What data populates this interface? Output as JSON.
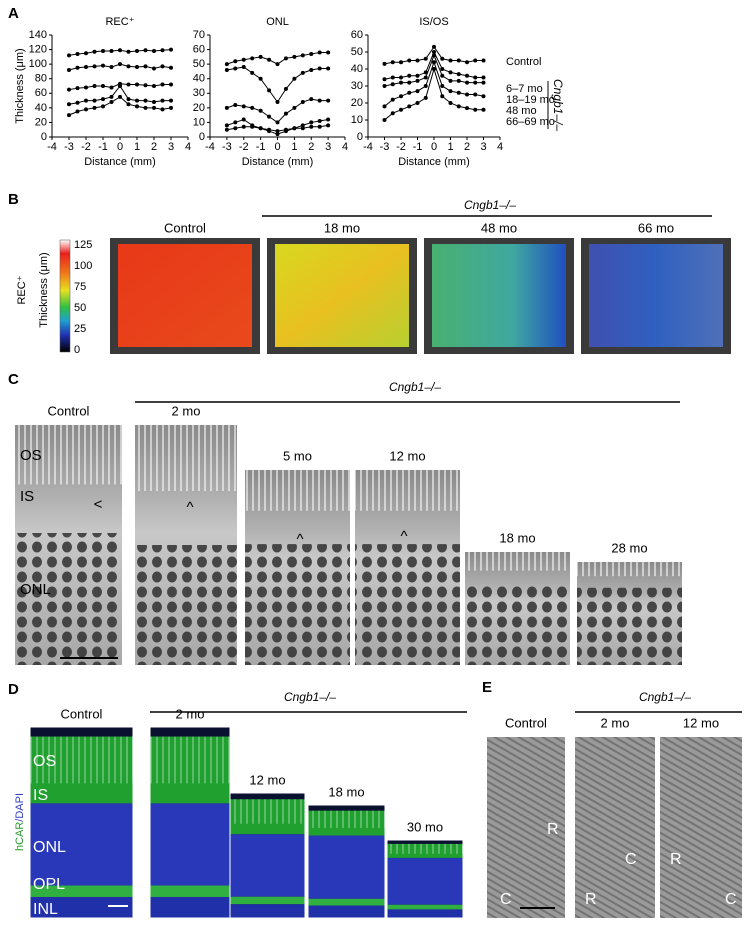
{
  "chart_data": [
    {
      "type": "line",
      "title": "REC⁺",
      "x_label": "Distance (mm)",
      "y_label": "Thickness (μm)",
      "x": [
        -3,
        -2.5,
        -2,
        -1.5,
        -1,
        -0.5,
        0,
        0.5,
        1,
        1.5,
        2,
        2.5,
        3
      ],
      "xlim": [
        -4,
        4
      ],
      "xticks": [
        -4,
        -3,
        -2,
        -1,
        0,
        1,
        2,
        3,
        4
      ],
      "ylim": [
        0,
        140
      ],
      "yticks": [
        0,
        20,
        40,
        60,
        80,
        100,
        120,
        140
      ],
      "series": [
        {
          "color": "#000000",
          "values": [
            112,
            114,
            115,
            117,
            118,
            118,
            119,
            117,
            118,
            119,
            118,
            119,
            120
          ]
        },
        {
          "color": "#000000",
          "values": [
            92,
            95,
            96,
            97,
            98,
            96,
            100,
            97,
            96,
            97,
            94,
            97,
            95
          ]
        },
        {
          "color": "#000000",
          "values": [
            65,
            67,
            68,
            70,
            70,
            68,
            73,
            72,
            72,
            71,
            70,
            72,
            72
          ]
        },
        {
          "color": "#000000",
          "values": [
            45,
            47,
            50,
            50,
            52,
            55,
            70,
            52,
            50,
            50,
            48,
            50,
            50
          ]
        },
        {
          "color": "#000000",
          "values": [
            30,
            35,
            38,
            40,
            42,
            48,
            55,
            45,
            42,
            40,
            40,
            38,
            40
          ]
        }
      ]
    },
    {
      "type": "line",
      "title": "ONL",
      "x_label": "Distance (mm)",
      "x": [
        -3,
        -2.5,
        -2,
        -1.5,
        -1,
        -0.5,
        0,
        0.5,
        1,
        1.5,
        2,
        2.5,
        3
      ],
      "xlim": [
        -4,
        4
      ],
      "xticks": [
        -4,
        -3,
        -2,
        -1,
        0,
        1,
        2,
        3,
        4
      ],
      "ylim": [
        0,
        70
      ],
      "yticks": [
        0,
        10,
        20,
        30,
        40,
        50,
        60,
        70
      ],
      "series": [
        {
          "color": "#000000",
          "values": [
            50,
            52,
            53,
            54,
            55,
            53,
            50,
            54,
            55,
            56,
            57,
            58,
            58
          ]
        },
        {
          "color": "#000000",
          "values": [
            46,
            47,
            48,
            44,
            40,
            32,
            24,
            33,
            40,
            44,
            46,
            47,
            47
          ]
        },
        {
          "color": "#000000",
          "values": [
            20,
            22,
            21,
            20,
            18,
            14,
            10,
            16,
            20,
            24,
            26,
            25,
            25
          ]
        },
        {
          "color": "#000000",
          "values": [
            8,
            10,
            12,
            8,
            6,
            4,
            2,
            4,
            6,
            8,
            10,
            11,
            12
          ]
        },
        {
          "color": "#000000",
          "values": [
            5,
            6,
            7,
            7,
            6,
            5,
            4,
            5,
            6,
            6,
            7,
            7,
            8
          ]
        }
      ]
    },
    {
      "type": "line",
      "title": "IS/OS",
      "x_label": "Distance (mm)",
      "legend_group_label": "Cngb1–/–",
      "x": [
        -3,
        -2.5,
        -2,
        -1.5,
        -1,
        -0.5,
        0,
        0.5,
        1,
        1.5,
        2,
        2.5,
        3
      ],
      "xlim": [
        -4,
        4
      ],
      "xticks": [
        -4,
        -3,
        -2,
        -1,
        0,
        1,
        2,
        3,
        4
      ],
      "ylim": [
        0,
        60
      ],
      "yticks": [
        0,
        10,
        20,
        30,
        40,
        50,
        60
      ],
      "series": [
        {
          "name": "Control",
          "color": "#000000",
          "values": [
            43,
            44,
            44,
            45,
            45,
            46,
            53,
            46,
            45,
            45,
            44,
            45,
            45
          ]
        },
        {
          "name": "6–7 mo",
          "color": "#000000",
          "values": [
            34,
            35,
            35,
            36,
            36,
            38,
            50,
            40,
            38,
            37,
            36,
            35,
            35
          ]
        },
        {
          "name": "18–19 mo",
          "color": "#000000",
          "values": [
            30,
            31,
            32,
            32,
            33,
            35,
            48,
            36,
            33,
            33,
            32,
            32,
            32
          ]
        },
        {
          "name": "48 mo",
          "color": "#000000",
          "values": [
            18,
            22,
            24,
            26,
            27,
            30,
            44,
            30,
            27,
            26,
            25,
            25,
            24
          ]
        },
        {
          "name": "66–69 mo",
          "color": "#000000",
          "values": [
            10,
            14,
            16,
            18,
            20,
            23,
            40,
            24,
            20,
            18,
            17,
            16,
            16
          ]
        }
      ]
    }
  ],
  "panel_labels": [
    "A",
    "B",
    "C",
    "D",
    "E"
  ],
  "panel_b": {
    "colorbar_label": "REC⁺",
    "colorbar_axis_label": "Thickness (μm)",
    "colorbar_ticks": [
      125,
      100,
      75,
      50,
      25,
      0
    ],
    "genotype": "Cngb1–/–",
    "images": [
      "Control",
      "18 mo",
      "48 mo",
      "66 mo"
    ]
  },
  "panel_c": {
    "genotype": "Cngb1–/–",
    "images": [
      "Control",
      "2 mo",
      "5 mo",
      "12 mo",
      "18 mo",
      "28 mo"
    ],
    "layers": [
      "OS",
      "IS",
      "ONL"
    ],
    "markers": [
      "<",
      "^",
      "^",
      "^"
    ]
  },
  "panel_d": {
    "genotype": "Cngb1–/–",
    "stain": [
      "hCAR",
      "/DAPI"
    ],
    "images": [
      "Control",
      "2 mo",
      "12 mo",
      "18 mo",
      "30 mo"
    ],
    "layers": [
      "OS",
      "IS",
      "ONL",
      "OPL",
      "INL"
    ]
  },
  "panel_e": {
    "genotype": "Cngb1–/–",
    "images": [
      "Control",
      "2 mo",
      "12 mo"
    ],
    "regions": [
      [
        "R",
        "C"
      ],
      [
        "C",
        "R"
      ],
      [
        "R",
        "C"
      ]
    ]
  }
}
